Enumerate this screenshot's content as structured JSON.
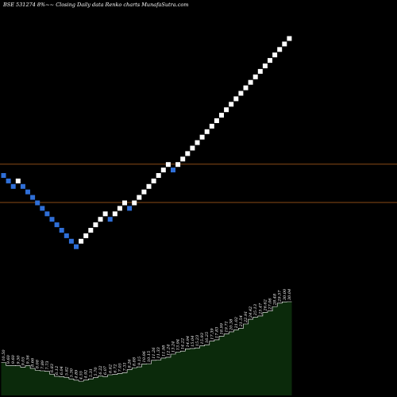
{
  "header": {
    "title": "BSE 531274  8%~~ Closing Daily data  Renko  charts MunafaSutra.com"
  },
  "colors": {
    "background": "#000000",
    "up_brick": "#ffffff",
    "down_brick": "#2f6fd8",
    "level_line": "#8a4a16",
    "volume_fill": "#0b2a0b",
    "volume_line": "#ffffff"
  },
  "chart_data": {
    "type": "renko",
    "title": "BSE 531274  8%~~ Closing Daily data  Renko  charts MunafaSutra.com",
    "source": "Closing Daily data",
    "bricks": [
      "down",
      "down",
      "down",
      "up",
      "down",
      "down",
      "down",
      "down",
      "down",
      "down",
      "down",
      "down",
      "down",
      "down",
      "down",
      "down",
      "up",
      "up",
      "up",
      "up",
      "up",
      "up",
      "down",
      "up",
      "up",
      "up",
      "down",
      "up",
      "up",
      "up",
      "up",
      "up",
      "up",
      "up",
      "up",
      "down",
      "up",
      "up",
      "up",
      "up",
      "up",
      "up",
      "up",
      "up",
      "up",
      "up",
      "up",
      "up",
      "up",
      "up",
      "up",
      "up",
      "up",
      "up",
      "up",
      "up",
      "up",
      "up",
      "up",
      "up"
    ],
    "start_level": 0,
    "volume_labels": [
      "10.50",
      "9.60",
      "9.60",
      "9.50",
      "9.05",
      "9.56",
      "8.66",
      "8.08",
      "7.89",
      "7.73",
      "6.83",
      "6.12",
      "6.04",
      "5.82",
      "5.30",
      "4.89",
      "4.55",
      "4.92",
      "5.31",
      "5.70",
      "6.22",
      "6.07",
      "6.62",
      "6.72",
      "7.05",
      "7.31",
      "8.26",
      "8.88",
      "9.15",
      "10.06",
      "10.15",
      "11.26",
      "11.33",
      "11.98",
      "12.24",
      "13.24",
      "13.94",
      "14.22",
      "14.94",
      "15.04",
      "15.23",
      "15.93",
      "16.25",
      "17.39",
      "17.83",
      "18.99",
      "19.71",
      "20.38",
      "21.02",
      "21.54",
      "22.91",
      "24.42",
      "25.13",
      "25.47",
      "26.62",
      "27.06",
      "28.48",
      "29.57",
      "30.00",
      "30.04"
    ],
    "volume_values": [
      10.5,
      9.6,
      9.6,
      9.5,
      9.05,
      9.56,
      8.66,
      8.08,
      7.89,
      7.73,
      6.83,
      6.12,
      6.04,
      5.82,
      5.3,
      4.89,
      4.55,
      4.92,
      5.31,
      5.7,
      6.22,
      6.07,
      6.62,
      6.72,
      7.05,
      7.31,
      8.26,
      8.88,
      9.15,
      10.06,
      10.15,
      11.26,
      11.33,
      11.98,
      12.24,
      13.24,
      13.94,
      14.22,
      14.94,
      15.04,
      15.23,
      15.93,
      16.25,
      17.39,
      17.83,
      18.99,
      19.71,
      20.38,
      21.02,
      21.54,
      22.91,
      24.42,
      25.13,
      25.47,
      26.62,
      27.06,
      28.48,
      29.57,
      30.0,
      30.04
    ],
    "levels": [
      -5,
      2
    ],
    "grid": false,
    "legend": "none"
  }
}
